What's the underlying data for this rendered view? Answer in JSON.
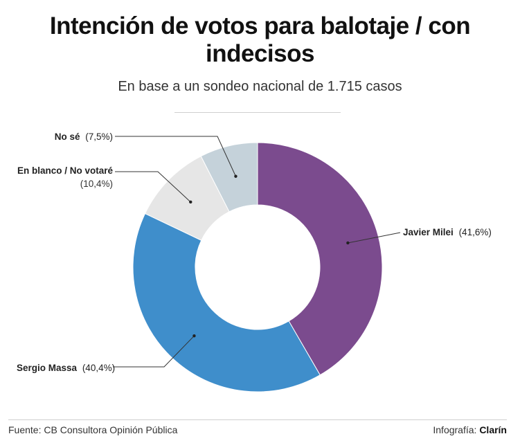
{
  "title": "Intención de votos para balotaje / con indecisos",
  "subtitle": "En base a un sondeo nacional de 1.715 casos",
  "chart_data": {
    "type": "pie",
    "donut": true,
    "slices": [
      {
        "name": "Javier Milei",
        "value": 41.6,
        "value_label": "(41,6%)",
        "color": "#7b4b8e"
      },
      {
        "name": "Sergio Massa",
        "value": 40.4,
        "value_label": "(40,4%)",
        "color": "#3f8ecb"
      },
      {
        "name": "En blanco / No votaré",
        "value": 10.4,
        "value_label": "(10,4%)",
        "color": "#e6e6e6"
      },
      {
        "name": "No sé",
        "value": 7.5,
        "value_label": "(7,5%)",
        "color": "#c5d2da"
      }
    ]
  },
  "footer": {
    "source": "Fuente: CB Consultora Opinión Pública",
    "credit_label": "Infografía:",
    "credit_name": "Clarín"
  }
}
